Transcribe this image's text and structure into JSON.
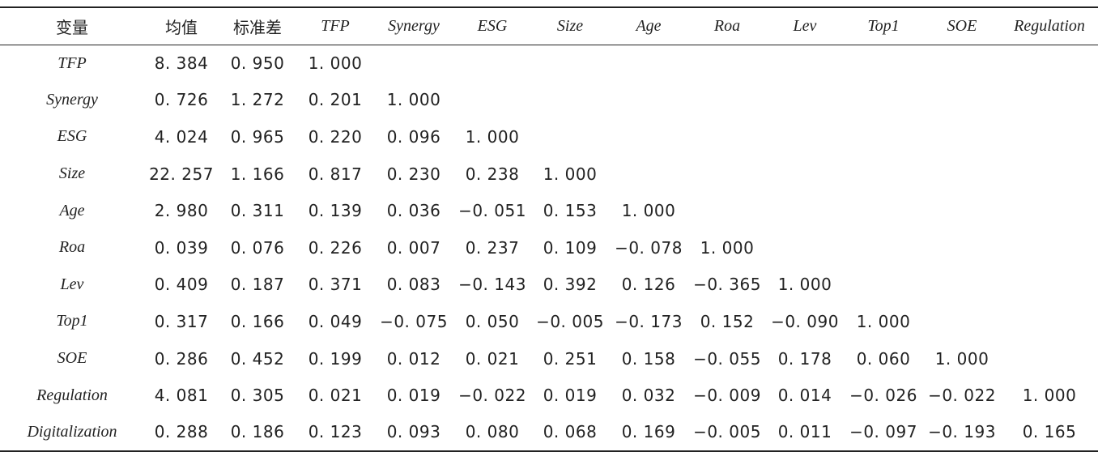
{
  "table": {
    "headers": [
      "变量",
      "均值",
      "标准差",
      "TFP",
      "Synergy",
      "ESG",
      "Size",
      "Age",
      "Roa",
      "Lev",
      "Top1",
      "SOE",
      "Regulation"
    ],
    "rows": [
      {
        "name": "TFP",
        "cells": [
          "8. 384",
          "0. 950",
          "1. 000",
          "",
          "",
          "",
          "",
          "",
          "",
          "",
          "",
          ""
        ]
      },
      {
        "name": "Synergy",
        "cells": [
          "0. 726",
          "1. 272",
          "0. 201",
          "1. 000",
          "",
          "",
          "",
          "",
          "",
          "",
          "",
          ""
        ]
      },
      {
        "name": "ESG",
        "cells": [
          "4. 024",
          "0. 965",
          "0. 220",
          "0. 096",
          "1. 000",
          "",
          "",
          "",
          "",
          "",
          "",
          ""
        ]
      },
      {
        "name": "Size",
        "cells": [
          "22. 257",
          "1. 166",
          "0. 817",
          "0. 230",
          "0. 238",
          "1. 000",
          "",
          "",
          "",
          "",
          "",
          ""
        ]
      },
      {
        "name": "Age",
        "cells": [
          "2. 980",
          "0. 311",
          "0. 139",
          "0. 036",
          "−0. 051",
          "0. 153",
          "1. 000",
          "",
          "",
          "",
          "",
          ""
        ]
      },
      {
        "name": "Roa",
        "cells": [
          "0. 039",
          "0. 076",
          "0. 226",
          "0. 007",
          "0. 237",
          "0. 109",
          "−0. 078",
          "1. 000",
          "",
          "",
          "",
          ""
        ]
      },
      {
        "name": "Lev",
        "cells": [
          "0. 409",
          "0. 187",
          "0. 371",
          "0. 083",
          "−0. 143",
          "0. 392",
          "0. 126",
          "−0. 365",
          "1. 000",
          "",
          "",
          ""
        ]
      },
      {
        "name": "Top1",
        "cells": [
          "0. 317",
          "0. 166",
          "0. 049",
          "−0. 075",
          "0. 050",
          "−0. 005",
          "−0. 173",
          "0. 152",
          "−0. 090",
          "1. 000",
          "",
          ""
        ]
      },
      {
        "name": "SOE",
        "cells": [
          "0. 286",
          "0. 452",
          "0. 199",
          "0. 012",
          "0. 021",
          "0. 251",
          "0. 158",
          "−0. 055",
          "0. 178",
          "0. 060",
          "1. 000",
          ""
        ]
      },
      {
        "name": "Regulation",
        "cells": [
          "4. 081",
          "0. 305",
          "0. 021",
          "0. 019",
          "−0. 022",
          "0. 019",
          "0. 032",
          "−0. 009",
          "0. 014",
          "−0. 026",
          "−0. 022",
          "1. 000"
        ]
      },
      {
        "name": "Digitalization",
        "cells": [
          "0. 288",
          "0. 186",
          "0. 123",
          "0. 093",
          "0. 080",
          "0. 068",
          "0. 169",
          "−0. 005",
          "0. 011",
          "−0. 097",
          "−0. 193",
          "0. 165"
        ]
      }
    ]
  }
}
